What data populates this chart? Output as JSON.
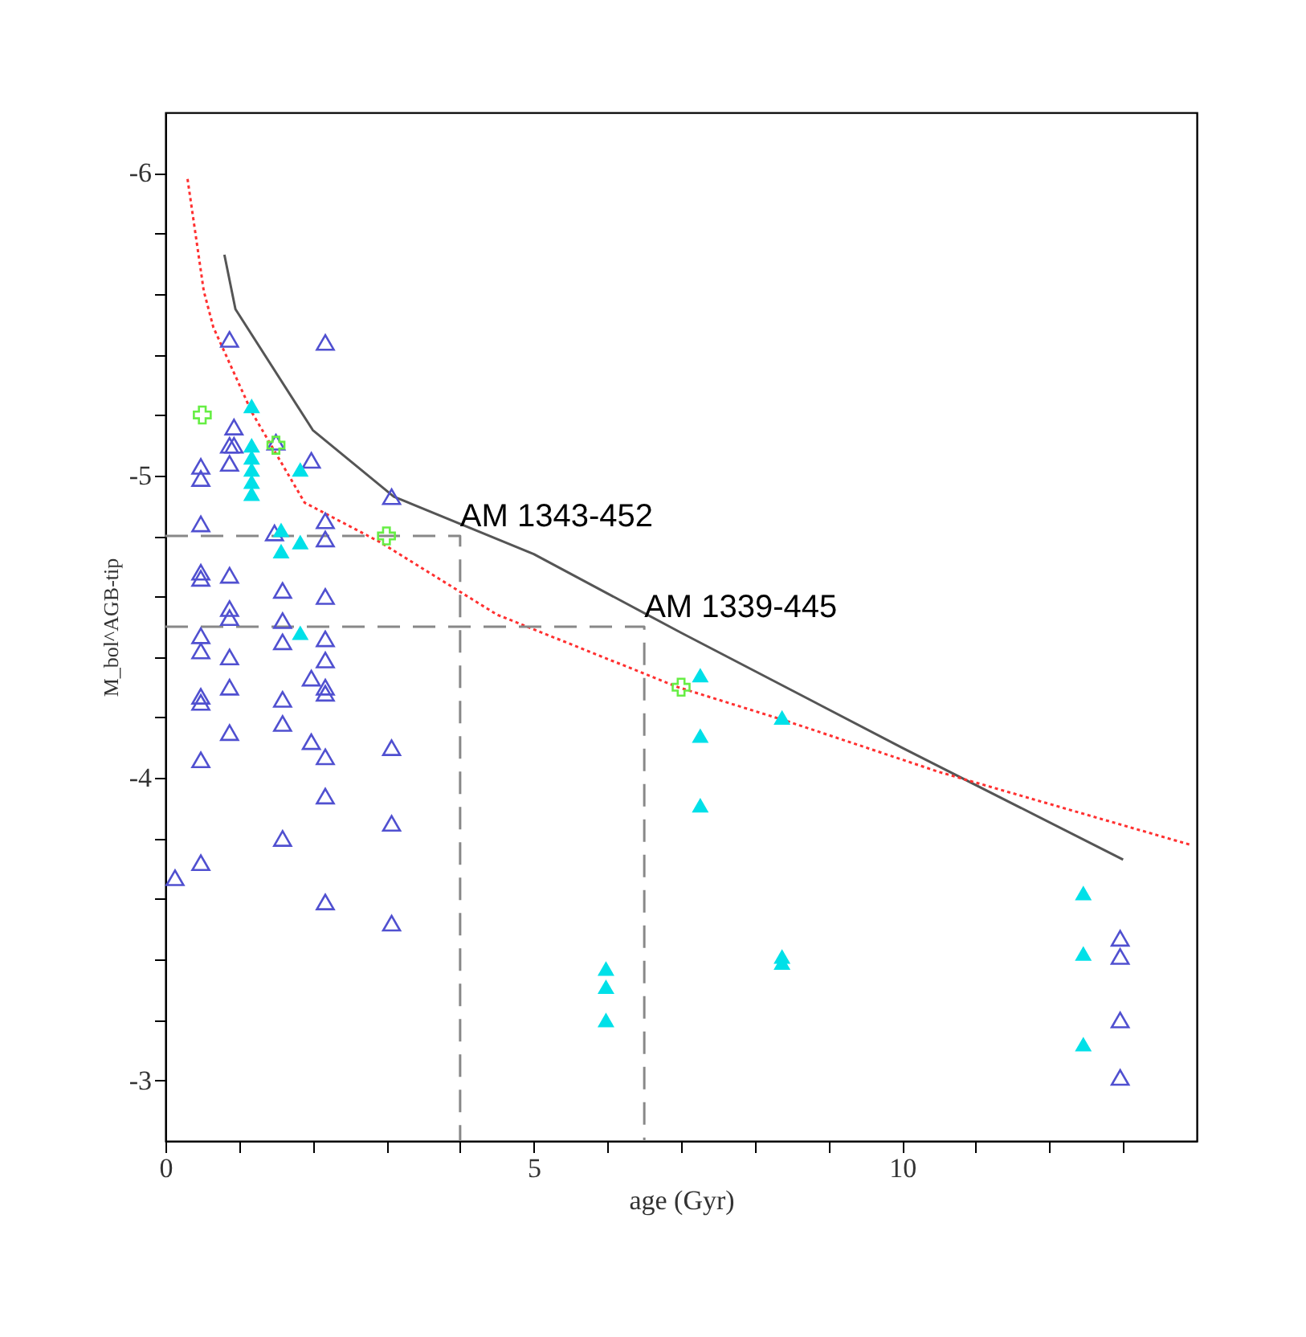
{
  "chart_data": {
    "type": "scatter",
    "xlabel": "age (Gyr)",
    "ylabel": "M_bol^AGB-tip",
    "xlim": [
      0,
      14
    ],
    "ylim": [
      -2.8,
      -6.2
    ],
    "xticks": [
      0,
      {
        "value": 1,
        "label": null
      },
      {
        "value": 2,
        "label": null
      },
      {
        "value": 3,
        "label": null
      },
      {
        "value": 4,
        "label": null
      },
      5,
      {
        "value": 6,
        "label": null
      },
      {
        "value": 7,
        "label": null
      },
      {
        "value": 8,
        "label": null
      },
      {
        "value": 9,
        "label": null
      },
      10,
      {
        "value": 11,
        "label": null
      },
      {
        "value": 12,
        "label": null
      },
      {
        "value": 13,
        "label": null
      }
    ],
    "yticks": [
      -6,
      {
        "value": -5.8,
        "label": null
      },
      {
        "value": -5.6,
        "label": null
      },
      {
        "value": -5.4,
        "label": null
      },
      {
        "value": -5.2,
        "label": null
      },
      -5,
      {
        "value": -4.8,
        "label": null
      },
      {
        "value": -4.6,
        "label": null
      },
      {
        "value": -4.4,
        "label": null
      },
      {
        "value": -4.2,
        "label": null
      },
      -4,
      {
        "value": -3.8,
        "label": null
      },
      {
        "value": -3.6,
        "label": null
      },
      {
        "value": -3.4,
        "label": null
      },
      {
        "value": -3.2,
        "label": null
      },
      -3
    ],
    "grid": false,
    "series": [
      {
        "type": "line",
        "color": "#555555",
        "line_style": "solid",
        "marker": "none",
        "x": [
          0.8,
          0.95,
          2,
          3.1,
          5,
          7,
          10,
          13
        ],
        "values": [
          -5.73,
          -5.55,
          -5.15,
          -4.93,
          -4.74,
          -4.48,
          -4.1,
          -3.73
        ]
      },
      {
        "type": "line",
        "color": "#ff3030",
        "line_style": "dotted",
        "marker": "none",
        "x": [
          0.3,
          0.52,
          0.65,
          1.17,
          1.89,
          2.91,
          4.5,
          6.96,
          8.41,
          10.5,
          13.9
        ],
        "values": [
          -5.98,
          -5.61,
          -5.49,
          -5.21,
          -4.91,
          -4.78,
          -4.54,
          -4.3,
          -4.19,
          -4.02,
          -3.78
        ]
      },
      {
        "type": "line",
        "color": "#888888",
        "line_style": "dashed",
        "marker": "none",
        "x": [
          0,
          4,
          4
        ],
        "values": [
          -4.8,
          -4.8,
          -2.8
        ]
      },
      {
        "type": "line",
        "color": "#888888",
        "line_style": "dashed",
        "marker": "none",
        "x": [
          0,
          6.5,
          6.5
        ],
        "values": [
          -4.5,
          -4.5,
          -2.8
        ]
      },
      {
        "type": "scatter",
        "color": "#5050d0",
        "marker": "triangle",
        "x": [
          0.87,
          2.17,
          0.93,
          0.87,
          0.93,
          1.5,
          0.48,
          0.48,
          0.87,
          1.98,
          3.07,
          0.48,
          1.48,
          2.17,
          2.17,
          0.48,
          0.48,
          0.87,
          1.59,
          2.17,
          0.87,
          0.87,
          1.59,
          0.48,
          0.48,
          0.87,
          1.59,
          2.17,
          2.17,
          1.98,
          0.87,
          0.48,
          0.48,
          1.59,
          2.17,
          2.17,
          0.87,
          1.59,
          1.98,
          2.17,
          3.07,
          0.48,
          2.17,
          3.07,
          1.59,
          0.48,
          0.13,
          2.17,
          3.07,
          12.96,
          12.96,
          12.96,
          12.96
        ],
        "values": [
          -5.45,
          -5.44,
          -5.16,
          -5.1,
          -5.1,
          -5.11,
          -5.03,
          -4.99,
          -5.04,
          -5.05,
          -4.93,
          -4.84,
          -4.81,
          -4.85,
          -4.79,
          -4.68,
          -4.66,
          -4.67,
          -4.62,
          -4.6,
          -4.56,
          -4.53,
          -4.52,
          -4.47,
          -4.42,
          -4.4,
          -4.45,
          -4.46,
          -4.39,
          -4.33,
          -4.3,
          -4.27,
          -4.25,
          -4.26,
          -4.3,
          -4.28,
          -4.15,
          -4.18,
          -4.12,
          -4.07,
          -4.1,
          -4.06,
          -3.94,
          -3.85,
          -3.8,
          -3.72,
          -3.67,
          -3.59,
          -3.52,
          -3.47,
          -3.41,
          -3.2,
          -3.01
        ]
      },
      {
        "type": "scatter",
        "color": "#00e0e8",
        "marker": "triangle",
        "x": [
          1.17,
          1.17,
          1.17,
          1.17,
          1.17,
          1.17,
          1.83,
          1.57,
          1.83,
          1.57,
          1.83,
          7.26,
          7.26,
          7.26,
          8.37,
          8.37,
          8.37,
          5.98,
          5.98,
          5.98,
          12.46,
          12.46,
          12.46
        ],
        "values": [
          -5.23,
          -5.1,
          -5.06,
          -5.02,
          -4.98,
          -4.94,
          -5.02,
          -4.82,
          -4.78,
          -4.75,
          -4.48,
          -4.34,
          -4.14,
          -3.91,
          -4.2,
          -3.41,
          -3.39,
          -3.37,
          -3.31,
          -3.2,
          -3.62,
          -3.42,
          -3.12
        ]
      },
      {
        "type": "scatter",
        "color": "#66ee44",
        "marker": "cross",
        "x": [
          0.5,
          1.5,
          3,
          7
        ],
        "values": [
          -5.2,
          -5.1,
          -4.8,
          -4.3
        ]
      }
    ],
    "annotations": [
      {
        "text": "AM 1343-452",
        "x": 4,
        "y": -4.8
      },
      {
        "text": "AM 1339-445",
        "x": 6.5,
        "y": -4.5
      }
    ]
  }
}
